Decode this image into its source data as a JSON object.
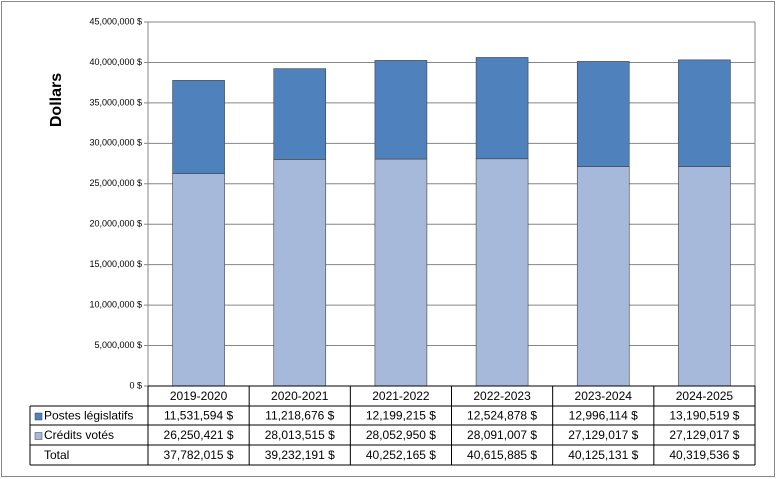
{
  "chart_data": {
    "type": "stacked-bar",
    "ylabel": "Dollars",
    "categories": [
      "2019-2020",
      "2020-2021",
      "2021-2022",
      "2022-2023",
      "2023-2024",
      "2024-2025"
    ],
    "series": [
      {
        "name": "Postes législatifs",
        "color": "#4f81bd",
        "values": [
          11531594,
          11218676,
          12199215,
          12524878,
          12996114,
          13190519
        ],
        "value_labels": [
          "11,531,594 $",
          "11,218,676 $",
          "12,199,215 $",
          "12,524,878 $",
          "12,996,114 $",
          "13,190,519 $"
        ]
      },
      {
        "name": "Crédits votés",
        "color": "#a7b9db",
        "values": [
          26250421,
          28013515,
          28052950,
          28091007,
          27129017,
          27129017
        ],
        "value_labels": [
          "26,250,421 $",
          "28,013,515 $",
          "28,052,950 $",
          "28,091,007 $",
          "27,129,017 $",
          "27,129,017 $"
        ]
      }
    ],
    "total": {
      "name": "Total",
      "values": [
        37782015,
        39232191,
        40252165,
        40615885,
        40125131,
        40319536
      ],
      "value_labels": [
        "37,782,015 $",
        "39,232,191 $",
        "40,252,165 $",
        "40,615,885 $",
        "40,125,131 $",
        "40,319,536 $"
      ]
    },
    "ylim": [
      0,
      45000000
    ],
    "yticks": [
      {
        "value": 0,
        "label": "0 $"
      },
      {
        "value": 5000000,
        "label": "5,000,000 $"
      },
      {
        "value": 10000000,
        "label": "10,000,000 $"
      },
      {
        "value": 15000000,
        "label": "15,000,000 $"
      },
      {
        "value": 20000000,
        "label": "20,000,000 $"
      },
      {
        "value": 25000000,
        "label": "25,000,000 $"
      },
      {
        "value": 30000000,
        "label": "30,000,000 $"
      },
      {
        "value": 35000000,
        "label": "35,000,000 $"
      },
      {
        "value": 40000000,
        "label": "40,000,000 $"
      },
      {
        "value": 45000000,
        "label": "45,000,000 $"
      }
    ],
    "grid": true
  }
}
